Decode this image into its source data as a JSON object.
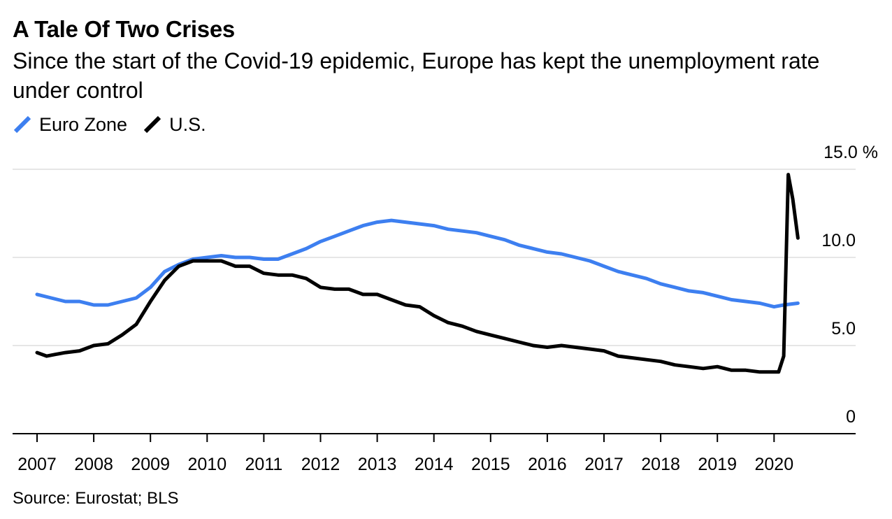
{
  "chart_data": {
    "type": "line",
    "title": "A Tale Of Two Crises",
    "subtitle": "Since the start of the Covid-19 epidemic, Europe has kept the unemployment rate under control",
    "source": "Source: Eurostat; BLS",
    "unit": "%",
    "ylim": [
      0,
      15
    ],
    "xlim": [
      2007.0,
      2021.5
    ],
    "y_ticks": [
      {
        "value": 0,
        "label": "0"
      },
      {
        "value": 5,
        "label": "5.0"
      },
      {
        "value": 10,
        "label": "10.0"
      },
      {
        "value": 15,
        "label": "15.0 %"
      }
    ],
    "x_ticks": [
      {
        "value": 2007,
        "label": "2007"
      },
      {
        "value": 2008,
        "label": "2008"
      },
      {
        "value": 2009,
        "label": "2009"
      },
      {
        "value": 2010,
        "label": "2010"
      },
      {
        "value": 2011,
        "label": "2011"
      },
      {
        "value": 2012,
        "label": "2012"
      },
      {
        "value": 2013,
        "label": "2013"
      },
      {
        "value": 2014,
        "label": "2014"
      },
      {
        "value": 2015,
        "label": "2015"
      },
      {
        "value": 2016,
        "label": "2016"
      },
      {
        "value": 2017,
        "label": "2017"
      },
      {
        "value": 2018,
        "label": "2018"
      },
      {
        "value": 2019,
        "label": "2019"
      },
      {
        "value": 2020,
        "label": "2020"
      }
    ],
    "grid": true,
    "legend_position": "top-left",
    "series": [
      {
        "name": "Euro Zone",
        "color": "#3d7ff0",
        "points": [
          [
            2007.0,
            7.9
          ],
          [
            2007.25,
            7.7
          ],
          [
            2007.5,
            7.5
          ],
          [
            2007.75,
            7.5
          ],
          [
            2008.0,
            7.3
          ],
          [
            2008.25,
            7.3
          ],
          [
            2008.5,
            7.5
          ],
          [
            2008.75,
            7.7
          ],
          [
            2009.0,
            8.3
          ],
          [
            2009.25,
            9.2
          ],
          [
            2009.5,
            9.6
          ],
          [
            2009.75,
            9.9
          ],
          [
            2010.0,
            10.0
          ],
          [
            2010.25,
            10.1
          ],
          [
            2010.5,
            10.0
          ],
          [
            2010.75,
            10.0
          ],
          [
            2011.0,
            9.9
          ],
          [
            2011.25,
            9.9
          ],
          [
            2011.5,
            10.2
          ],
          [
            2011.75,
            10.5
          ],
          [
            2012.0,
            10.9
          ],
          [
            2012.25,
            11.2
          ],
          [
            2012.5,
            11.5
          ],
          [
            2012.75,
            11.8
          ],
          [
            2013.0,
            12.0
          ],
          [
            2013.25,
            12.1
          ],
          [
            2013.5,
            12.0
          ],
          [
            2013.75,
            11.9
          ],
          [
            2014.0,
            11.8
          ],
          [
            2014.25,
            11.6
          ],
          [
            2014.5,
            11.5
          ],
          [
            2014.75,
            11.4
          ],
          [
            2015.0,
            11.2
          ],
          [
            2015.25,
            11.0
          ],
          [
            2015.5,
            10.7
          ],
          [
            2015.75,
            10.5
          ],
          [
            2016.0,
            10.3
          ],
          [
            2016.25,
            10.2
          ],
          [
            2016.5,
            10.0
          ],
          [
            2016.75,
            9.8
          ],
          [
            2017.0,
            9.5
          ],
          [
            2017.25,
            9.2
          ],
          [
            2017.5,
            9.0
          ],
          [
            2017.75,
            8.8
          ],
          [
            2018.0,
            8.5
          ],
          [
            2018.25,
            8.3
          ],
          [
            2018.5,
            8.1
          ],
          [
            2018.75,
            8.0
          ],
          [
            2019.0,
            7.8
          ],
          [
            2019.25,
            7.6
          ],
          [
            2019.5,
            7.5
          ],
          [
            2019.75,
            7.4
          ],
          [
            2020.0,
            7.2
          ],
          [
            2020.17,
            7.3
          ],
          [
            2020.42,
            7.4
          ]
        ]
      },
      {
        "name": "U.S.",
        "color": "#000000",
        "points": [
          [
            2007.0,
            4.6
          ],
          [
            2007.17,
            4.4
          ],
          [
            2007.33,
            4.5
          ],
          [
            2007.5,
            4.6
          ],
          [
            2007.75,
            4.7
          ],
          [
            2008.0,
            5.0
          ],
          [
            2008.25,
            5.1
          ],
          [
            2008.5,
            5.6
          ],
          [
            2008.75,
            6.2
          ],
          [
            2009.0,
            7.5
          ],
          [
            2009.25,
            8.7
          ],
          [
            2009.5,
            9.5
          ],
          [
            2009.75,
            9.8
          ],
          [
            2010.0,
            9.8
          ],
          [
            2010.25,
            9.8
          ],
          [
            2010.5,
            9.5
          ],
          [
            2010.75,
            9.5
          ],
          [
            2011.0,
            9.1
          ],
          [
            2011.25,
            9.0
          ],
          [
            2011.5,
            9.0
          ],
          [
            2011.75,
            8.8
          ],
          [
            2012.0,
            8.3
          ],
          [
            2012.25,
            8.2
          ],
          [
            2012.5,
            8.2
          ],
          [
            2012.75,
            7.9
          ],
          [
            2013.0,
            7.9
          ],
          [
            2013.25,
            7.6
          ],
          [
            2013.5,
            7.3
          ],
          [
            2013.75,
            7.2
          ],
          [
            2014.0,
            6.7
          ],
          [
            2014.25,
            6.3
          ],
          [
            2014.5,
            6.1
          ],
          [
            2014.75,
            5.8
          ],
          [
            2015.0,
            5.6
          ],
          [
            2015.25,
            5.4
          ],
          [
            2015.5,
            5.2
          ],
          [
            2015.75,
            5.0
          ],
          [
            2016.0,
            4.9
          ],
          [
            2016.25,
            5.0
          ],
          [
            2016.5,
            4.9
          ],
          [
            2016.75,
            4.8
          ],
          [
            2017.0,
            4.7
          ],
          [
            2017.25,
            4.4
          ],
          [
            2017.5,
            4.3
          ],
          [
            2017.75,
            4.2
          ],
          [
            2018.0,
            4.1
          ],
          [
            2018.25,
            3.9
          ],
          [
            2018.5,
            3.8
          ],
          [
            2018.75,
            3.7
          ],
          [
            2019.0,
            3.8
          ],
          [
            2019.25,
            3.6
          ],
          [
            2019.5,
            3.6
          ],
          [
            2019.75,
            3.5
          ],
          [
            2020.0,
            3.5
          ],
          [
            2020.08,
            3.5
          ],
          [
            2020.17,
            4.4
          ],
          [
            2020.25,
            14.7
          ],
          [
            2020.33,
            13.3
          ],
          [
            2020.42,
            11.1
          ]
        ]
      }
    ]
  }
}
